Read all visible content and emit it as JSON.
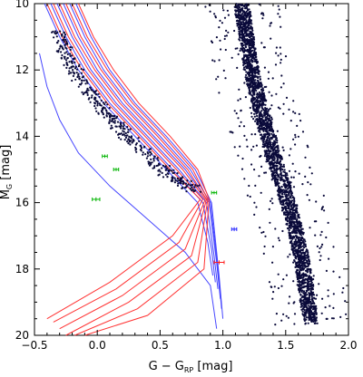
{
  "chart_data": {
    "type": "scatter",
    "title": "",
    "xlabel": {
      "base": "G − G",
      "sub": "RP",
      "unit": " [mag]"
    },
    "ylabel": {
      "base": "M",
      "sub": "G",
      "unit": " [mag]"
    },
    "xlim": [
      -0.5,
      2.0
    ],
    "ylim": [
      20,
      10
    ],
    "y_inverted": true,
    "xticks": [
      "−0.5",
      "0.0",
      "0.5",
      "1.0",
      "1.5",
      "2.0"
    ],
    "xtick_values": [
      -0.5,
      0.0,
      0.5,
      1.0,
      1.5,
      2.0
    ],
    "yticks": [
      "10",
      "12",
      "14",
      "16",
      "18",
      "20"
    ],
    "ytick_values": [
      10,
      12,
      14,
      16,
      18,
      20
    ],
    "grid": false,
    "legend": "none",
    "colors": {
      "points": "#0a0a3a",
      "blue_tracks": "#4646ff",
      "red_tracks": "#ff3232",
      "green_error": "#00b400",
      "blue_error": "#1e1eff",
      "red_error": "#ff1e1e"
    },
    "white_dwarf_sequence_sample": [
      [
        -0.32,
        10.9
      ],
      [
        -0.28,
        11.2
      ],
      [
        -0.24,
        11.6
      ],
      [
        -0.18,
        12.0
      ],
      [
        -0.12,
        12.4
      ],
      [
        -0.05,
        12.7
      ],
      [
        0.02,
        13.0
      ],
      [
        0.08,
        13.3
      ],
      [
        0.15,
        13.6
      ],
      [
        0.22,
        13.9
      ],
      [
        0.3,
        14.2
      ],
      [
        0.38,
        14.5
      ],
      [
        0.46,
        14.8
      ],
      [
        0.55,
        15.1
      ],
      [
        0.64,
        15.3
      ],
      [
        0.72,
        15.5
      ],
      [
        0.78,
        15.6
      ]
    ],
    "main_sequence_sample": [
      [
        1.15,
        10.0
      ],
      [
        1.18,
        10.8
      ],
      [
        1.21,
        11.6
      ],
      [
        1.25,
        12.4
      ],
      [
        1.3,
        13.2
      ],
      [
        1.36,
        14.0
      ],
      [
        1.42,
        14.8
      ],
      [
        1.49,
        15.6
      ],
      [
        1.55,
        16.4
      ],
      [
        1.6,
        17.2
      ],
      [
        1.64,
        18.0
      ],
      [
        1.67,
        18.8
      ],
      [
        1.7,
        19.6
      ]
    ],
    "blue_tracks": [
      {
        "points": [
          [
            -0.42,
            10.0
          ],
          [
            -0.3,
            11.0
          ],
          [
            -0.15,
            12.0
          ],
          [
            0.05,
            13.0
          ],
          [
            0.3,
            14.0
          ],
          [
            0.55,
            15.0
          ],
          [
            0.8,
            16.0
          ],
          [
            0.88,
            17.2
          ],
          [
            0.92,
            18.2
          ]
        ]
      },
      {
        "points": [
          [
            -0.37,
            10.0
          ],
          [
            -0.25,
            11.0
          ],
          [
            -0.1,
            12.0
          ],
          [
            0.1,
            13.0
          ],
          [
            0.35,
            14.0
          ],
          [
            0.6,
            15.0
          ],
          [
            0.84,
            16.0
          ],
          [
            0.91,
            17.4
          ],
          [
            0.94,
            18.4
          ]
        ]
      },
      {
        "points": [
          [
            -0.32,
            10.0
          ],
          [
            -0.2,
            11.0
          ],
          [
            -0.05,
            12.0
          ],
          [
            0.15,
            13.0
          ],
          [
            0.4,
            14.0
          ],
          [
            0.65,
            15.0
          ],
          [
            0.87,
            16.0
          ],
          [
            0.93,
            17.6
          ],
          [
            0.96,
            18.6
          ]
        ]
      },
      {
        "points": [
          [
            -0.27,
            10.0
          ],
          [
            -0.15,
            11.0
          ],
          [
            0.0,
            12.0
          ],
          [
            0.2,
            13.0
          ],
          [
            0.45,
            14.0
          ],
          [
            0.7,
            15.0
          ],
          [
            0.89,
            16.0
          ],
          [
            0.95,
            17.8
          ],
          [
            0.98,
            18.9
          ]
        ]
      },
      {
        "points": [
          [
            -0.22,
            10.0
          ],
          [
            -0.1,
            11.0
          ],
          [
            0.05,
            12.0
          ],
          [
            0.25,
            13.0
          ],
          [
            0.5,
            14.0
          ],
          [
            0.74,
            15.0
          ],
          [
            0.9,
            16.0
          ],
          [
            0.96,
            18.0
          ],
          [
            0.99,
            19.2
          ]
        ]
      },
      {
        "points": [
          [
            -0.17,
            10.0
          ],
          [
            -0.05,
            11.0
          ],
          [
            0.1,
            12.0
          ],
          [
            0.3,
            13.0
          ],
          [
            0.55,
            14.0
          ],
          [
            0.78,
            15.0
          ],
          [
            0.91,
            16.0
          ],
          [
            0.97,
            18.2
          ],
          [
            1.0,
            19.5
          ]
        ]
      },
      {
        "points": [
          [
            -0.46,
            11.5
          ],
          [
            -0.4,
            12.5
          ],
          [
            -0.3,
            13.5
          ],
          [
            -0.15,
            14.5
          ],
          [
            0.1,
            15.5
          ],
          [
            0.4,
            16.5
          ],
          [
            0.7,
            17.5
          ],
          [
            0.9,
            18.5
          ],
          [
            0.95,
            19.8
          ]
        ]
      }
    ],
    "red_tracks": [
      {
        "points": [
          [
            -0.4,
            10.0
          ],
          [
            -0.28,
            11.0
          ],
          [
            -0.12,
            12.0
          ],
          [
            0.08,
            13.0
          ],
          [
            0.33,
            14.0
          ],
          [
            0.58,
            15.0
          ],
          [
            0.82,
            15.9
          ],
          [
            0.6,
            17.0
          ],
          [
            0.1,
            18.4
          ],
          [
            -0.4,
            19.5
          ]
        ]
      },
      {
        "points": [
          [
            -0.35,
            10.0
          ],
          [
            -0.23,
            11.0
          ],
          [
            -0.07,
            12.0
          ],
          [
            0.13,
            13.0
          ],
          [
            0.38,
            14.0
          ],
          [
            0.63,
            15.0
          ],
          [
            0.84,
            15.9
          ],
          [
            0.65,
            17.2
          ],
          [
            0.15,
            18.6
          ],
          [
            -0.35,
            19.6
          ]
        ]
      },
      {
        "points": [
          [
            -0.3,
            10.0
          ],
          [
            -0.18,
            11.0
          ],
          [
            -0.02,
            12.0
          ],
          [
            0.18,
            13.0
          ],
          [
            0.43,
            14.0
          ],
          [
            0.68,
            15.0
          ],
          [
            0.86,
            15.9
          ],
          [
            0.7,
            17.4
          ],
          [
            0.2,
            18.8
          ],
          [
            -0.3,
            19.8
          ]
        ]
      },
      {
        "points": [
          [
            -0.25,
            10.0
          ],
          [
            -0.13,
            11.0
          ],
          [
            0.03,
            12.0
          ],
          [
            0.23,
            13.0
          ],
          [
            0.48,
            14.0
          ],
          [
            0.72,
            15.0
          ],
          [
            0.87,
            15.9
          ],
          [
            0.75,
            17.6
          ],
          [
            0.25,
            19.0
          ],
          [
            -0.25,
            20.0
          ]
        ]
      },
      {
        "points": [
          [
            -0.2,
            10.0
          ],
          [
            -0.08,
            11.0
          ],
          [
            0.08,
            12.0
          ],
          [
            0.28,
            13.0
          ],
          [
            0.53,
            14.0
          ],
          [
            0.76,
            15.0
          ],
          [
            0.88,
            15.9
          ],
          [
            0.8,
            17.8
          ],
          [
            0.32,
            19.2
          ],
          [
            -0.18,
            20.0
          ]
        ]
      },
      {
        "points": [
          [
            -0.15,
            10.0
          ],
          [
            -0.03,
            11.0
          ],
          [
            0.13,
            12.0
          ],
          [
            0.33,
            13.0
          ],
          [
            0.58,
            14.0
          ],
          [
            0.8,
            15.0
          ],
          [
            0.89,
            15.9
          ],
          [
            0.85,
            18.0
          ],
          [
            0.4,
            19.4
          ],
          [
            -0.1,
            20.0
          ]
        ]
      }
    ],
    "error_bars": [
      {
        "x": 0.06,
        "y": 14.6,
        "xerr": 0.02,
        "yerr": 0.05,
        "color": "green"
      },
      {
        "x": 0.15,
        "y": 15.0,
        "xerr": 0.02,
        "yerr": 0.05,
        "color": "green"
      },
      {
        "x": -0.01,
        "y": 15.9,
        "xerr": 0.03,
        "yerr": 0.06,
        "color": "green"
      },
      {
        "x": 0.93,
        "y": 15.7,
        "xerr": 0.02,
        "yerr": 0.05,
        "color": "green"
      },
      {
        "x": 1.09,
        "y": 16.8,
        "xerr": 0.02,
        "yerr": 0.06,
        "color": "blue"
      },
      {
        "x": 0.97,
        "y": 17.8,
        "xerr": 0.04,
        "yerr": 0.06,
        "color": "red"
      }
    ]
  }
}
